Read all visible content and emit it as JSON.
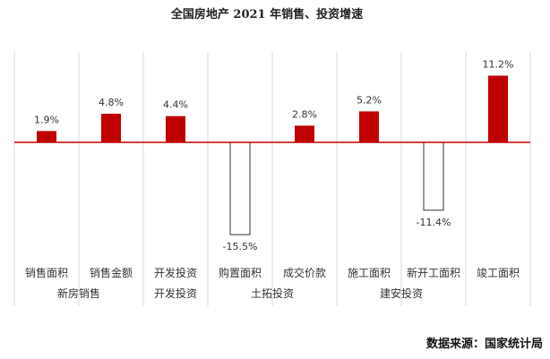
{
  "chart_data": {
    "type": "bar",
    "title": "全国房地产 2021 年销售、投资增速",
    "source": "数据来源：国家统计局",
    "categories": [
      "销售面积",
      "销售金额",
      "开发投资",
      "购置面积",
      "成交价款",
      "施工面积",
      "新开工面积",
      "竣工面积"
    ],
    "values": [
      1.9,
      4.8,
      4.4,
      -15.5,
      2.8,
      5.2,
      -11.4,
      11.2
    ],
    "value_labels": [
      "1.9%",
      "4.8%",
      "4.4%",
      "-15.5%",
      "2.8%",
      "5.2%",
      "-11.4%",
      "11.2%"
    ],
    "groups": [
      {
        "label": "新房销售",
        "span": [
          0,
          1
        ]
      },
      {
        "label": "开发投资",
        "span": [
          2,
          2
        ]
      },
      {
        "label": "土拓投资",
        "span": [
          3,
          4
        ]
      },
      {
        "label": "建安投资",
        "span": [
          5,
          6
        ]
      },
      {
        "label": "",
        "span": [
          7,
          7
        ]
      }
    ],
    "ylim": [
      -19,
      14
    ],
    "colors": {
      "positive": "#C00000",
      "negative": "#ffffff",
      "negative_stroke": "#333333",
      "zero_line": "#C00000"
    }
  }
}
